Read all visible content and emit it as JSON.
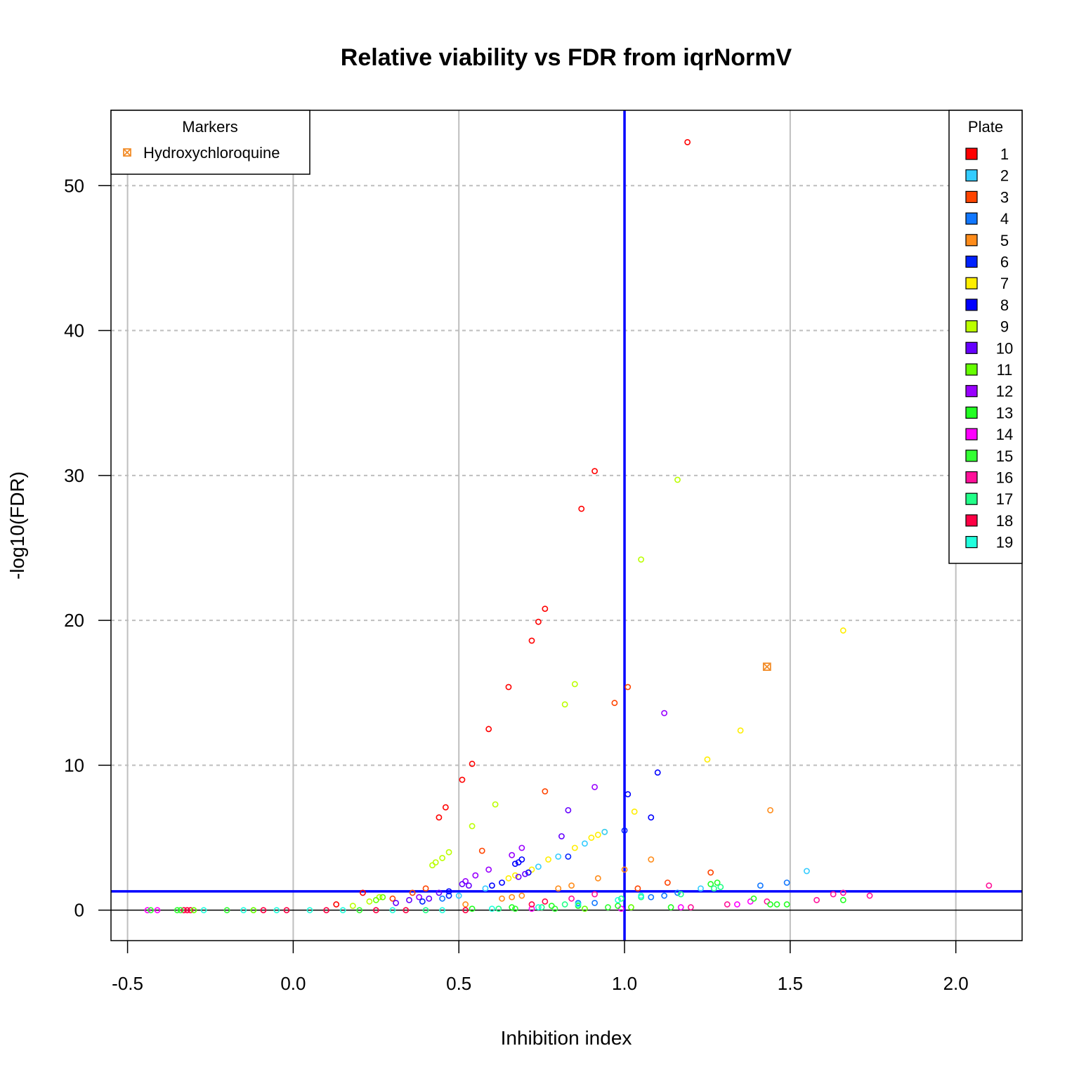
{
  "chart_data": {
    "type": "scatter",
    "title": "Relative viability vs FDR from iqrNormV",
    "xlabel": "Inhibition index",
    "ylabel": "-log10(FDR)",
    "xlim": [
      -0.55,
      2.2
    ],
    "ylim": [
      -2.1,
      55.2
    ],
    "x_ticks": [
      -0.5,
      0.0,
      0.5,
      1.0,
      1.5,
      2.0
    ],
    "x_tick_labels": [
      "-0.5",
      "0.0",
      "0.5",
      "1.0",
      "1.5",
      "2.0"
    ],
    "y_ticks": [
      0,
      10,
      20,
      30,
      40,
      50
    ],
    "y_tick_labels": [
      "0",
      "10",
      "20",
      "30",
      "40",
      "50"
    ],
    "grid": true,
    "threshold_lines": {
      "x": 1.0,
      "y": 1.3,
      "color": "#0000FF"
    },
    "zero_line_y": 0,
    "legend_markers": {
      "title": "Markers",
      "position": "top-left",
      "items": [
        {
          "label": "Hydroxychloroquine",
          "color": "#F28C28"
        }
      ]
    },
    "legend_plates": {
      "title": "Plate",
      "position": "top-right",
      "items": [
        {
          "label": "1",
          "color": "#FF0000"
        },
        {
          "label": "2",
          "color": "#33CCFF"
        },
        {
          "label": "3",
          "color": "#FF4400"
        },
        {
          "label": "4",
          "color": "#1177FF"
        },
        {
          "label": "5",
          "color": "#FF8C1A"
        },
        {
          "label": "6",
          "color": "#0022FF"
        },
        {
          "label": "7",
          "color": "#FFEE00"
        },
        {
          "label": "8",
          "color": "#0000FF"
        },
        {
          "label": "9",
          "color": "#BBFF00"
        },
        {
          "label": "10",
          "color": "#6600FF"
        },
        {
          "label": "11",
          "color": "#66FF00"
        },
        {
          "label": "12",
          "color": "#9900FF"
        },
        {
          "label": "13",
          "color": "#22FF22"
        },
        {
          "label": "14",
          "color": "#FF00FF"
        },
        {
          "label": "15",
          "color": "#33FF33"
        },
        {
          "label": "16",
          "color": "#FF1199"
        },
        {
          "label": "17",
          "color": "#22FF88"
        },
        {
          "label": "18",
          "color": "#FF0044"
        },
        {
          "label": "19",
          "color": "#22FFDD"
        }
      ]
    },
    "series": [
      {
        "name": "1",
        "color": "#FF0000",
        "points": [
          [
            1.19,
            53.0
          ],
          [
            0.91,
            30.3
          ],
          [
            0.87,
            27.7
          ],
          [
            0.76,
            20.8
          ],
          [
            0.74,
            19.9
          ],
          [
            0.72,
            18.6
          ],
          [
            0.65,
            15.4
          ],
          [
            0.59,
            12.5
          ],
          [
            0.54,
            10.1
          ],
          [
            0.51,
            9.0
          ],
          [
            0.46,
            7.1
          ],
          [
            0.44,
            6.4
          ],
          [
            0.21,
            1.2
          ],
          [
            0.13,
            0.4
          ]
        ]
      },
      {
        "name": "3",
        "color": "#FF4400",
        "points": [
          [
            1.01,
            15.4
          ],
          [
            0.97,
            14.3
          ],
          [
            0.76,
            8.2
          ],
          [
            0.57,
            4.1
          ],
          [
            1.26,
            2.6
          ],
          [
            1.13,
            1.9
          ],
          [
            1.04,
            1.5
          ],
          [
            0.4,
            1.5
          ],
          [
            0.36,
            1.2
          ],
          [
            0.3,
            0.8
          ]
        ]
      },
      {
        "name": "9",
        "color": "#BBFF00",
        "points": [
          [
            1.16,
            29.7
          ],
          [
            1.05,
            24.2
          ],
          [
            0.85,
            15.6
          ],
          [
            0.82,
            14.2
          ],
          [
            0.61,
            7.3
          ],
          [
            0.54,
            5.8
          ],
          [
            0.47,
            4.0
          ],
          [
            0.45,
            3.6
          ],
          [
            0.43,
            3.3
          ],
          [
            0.42,
            3.1
          ],
          [
            0.26,
            0.9
          ],
          [
            0.23,
            0.6
          ],
          [
            0.18,
            0.3
          ]
        ]
      },
      {
        "name": "7",
        "color": "#FFEE00",
        "points": [
          [
            1.66,
            19.3
          ],
          [
            1.35,
            12.4
          ],
          [
            1.25,
            10.4
          ],
          [
            1.03,
            6.8
          ],
          [
            0.94,
            5.4
          ],
          [
            0.92,
            5.2
          ],
          [
            0.9,
            5.0
          ],
          [
            0.85,
            4.3
          ],
          [
            0.77,
            3.5
          ],
          [
            0.72,
            2.8
          ],
          [
            0.67,
            2.4
          ],
          [
            0.65,
            2.2
          ]
        ]
      },
      {
        "name": "5",
        "color": "#FF8C1A",
        "points": [
          [
            1.44,
            6.9
          ],
          [
            1.08,
            3.5
          ],
          [
            1.0,
            2.8
          ],
          [
            0.92,
            2.2
          ],
          [
            0.84,
            1.7
          ],
          [
            0.8,
            1.5
          ],
          [
            0.69,
            1.0
          ],
          [
            0.66,
            0.9
          ],
          [
            0.63,
            0.8
          ],
          [
            0.52,
            0.4
          ]
        ]
      },
      {
        "name": "12",
        "color": "#9900FF",
        "points": [
          [
            1.12,
            13.6
          ],
          [
            0.91,
            8.5
          ],
          [
            0.69,
            4.3
          ],
          [
            0.66,
            3.8
          ],
          [
            0.59,
            2.8
          ],
          [
            0.55,
            2.4
          ],
          [
            0.52,
            2.0
          ],
          [
            0.38,
            0.9
          ]
        ]
      },
      {
        "name": "8",
        "color": "#0000FF",
        "points": [
          [
            1.1,
            9.5
          ],
          [
            1.01,
            8.0
          ],
          [
            1.08,
            6.4
          ],
          [
            0.69,
            3.5
          ],
          [
            0.68,
            3.3
          ],
          [
            0.67,
            3.2
          ],
          [
            0.71,
            2.6
          ],
          [
            0.63,
            1.9
          ],
          [
            0.6,
            1.7
          ],
          [
            0.47,
            1.3
          ]
        ]
      },
      {
        "name": "10",
        "color": "#6600FF",
        "points": [
          [
            0.83,
            6.9
          ],
          [
            0.81,
            5.1
          ],
          [
            0.7,
            2.5
          ],
          [
            0.68,
            2.3
          ],
          [
            0.53,
            1.7
          ],
          [
            0.51,
            1.8
          ],
          [
            0.44,
            1.2
          ],
          [
            0.41,
            0.8
          ],
          [
            0.35,
            0.7
          ],
          [
            0.31,
            0.5
          ]
        ]
      },
      {
        "name": "2",
        "color": "#33CCFF",
        "points": [
          [
            0.94,
            5.4
          ],
          [
            0.88,
            4.6
          ],
          [
            0.8,
            3.7
          ],
          [
            0.74,
            3.0
          ],
          [
            1.55,
            2.7
          ],
          [
            1.23,
            1.5
          ],
          [
            0.58,
            1.5
          ],
          [
            0.5,
            1.0
          ]
        ]
      },
      {
        "name": "6",
        "color": "#0022FF",
        "points": [
          [
            1.0,
            5.5
          ],
          [
            0.83,
            3.7
          ],
          [
            0.47,
            1.0
          ],
          [
            0.39,
            0.6
          ]
        ]
      },
      {
        "name": "4",
        "color": "#1177FF",
        "points": [
          [
            1.49,
            1.9
          ],
          [
            1.41,
            1.7
          ],
          [
            1.16,
            1.2
          ],
          [
            1.12,
            1.0
          ],
          [
            1.08,
            0.9
          ],
          [
            0.91,
            0.5
          ],
          [
            0.86,
            0.5
          ],
          [
            0.45,
            0.8
          ]
        ]
      },
      {
        "name": "16",
        "color": "#FF1199",
        "points": [
          [
            2.1,
            1.7
          ],
          [
            1.74,
            1.0
          ],
          [
            1.66,
            1.2
          ],
          [
            1.63,
            1.1
          ],
          [
            1.58,
            0.7
          ],
          [
            1.43,
            0.6
          ],
          [
            1.31,
            0.4
          ],
          [
            1.2,
            0.2
          ],
          [
            0.91,
            1.1
          ],
          [
            0.84,
            0.8
          ]
        ]
      },
      {
        "name": "14",
        "color": "#FF00FF",
        "points": [
          [
            1.38,
            0.6
          ],
          [
            1.34,
            0.4
          ],
          [
            1.17,
            0.2
          ],
          [
            0.99,
            0.1
          ],
          [
            0.72,
            0.1
          ],
          [
            -0.44,
            0.0
          ],
          [
            -0.41,
            0.0
          ]
        ]
      },
      {
        "name": "13",
        "color": "#22FF22",
        "points": [
          [
            1.28,
            1.9
          ],
          [
            1.26,
            1.8
          ],
          [
            1.46,
            0.4
          ],
          [
            1.49,
            0.4
          ],
          [
            1.44,
            0.4
          ],
          [
            1.66,
            0.7
          ],
          [
            1.39,
            0.8
          ],
          [
            1.14,
            0.2
          ],
          [
            0.98,
            0.3
          ],
          [
            0.86,
            0.3
          ],
          [
            0.78,
            0.3
          ],
          [
            0.66,
            0.2
          ],
          [
            0.54,
            0.1
          ]
        ]
      },
      {
        "name": "17",
        "color": "#22FF88",
        "points": [
          [
            1.29,
            1.6
          ],
          [
            1.27,
            1.5
          ],
          [
            1.17,
            1.1
          ],
          [
            1.05,
            0.9
          ],
          [
            0.99,
            0.8
          ],
          [
            0.82,
            0.4
          ],
          [
            0.75,
            0.2
          ],
          [
            0.62,
            0.1
          ],
          [
            0.4,
            0.0
          ]
        ]
      },
      {
        "name": "19",
        "color": "#22FFDD",
        "points": [
          [
            1.05,
            1.0
          ],
          [
            0.98,
            0.7
          ],
          [
            0.86,
            0.4
          ],
          [
            0.74,
            0.2
          ],
          [
            0.6,
            0.1
          ],
          [
            0.45,
            0.0
          ],
          [
            0.3,
            0.0
          ],
          [
            0.15,
            0.0
          ],
          [
            0.05,
            0.0
          ],
          [
            -0.05,
            0.0
          ],
          [
            -0.15,
            0.0
          ],
          [
            -0.27,
            0.0
          ]
        ]
      },
      {
        "name": "18",
        "color": "#FF0044",
        "points": [
          [
            0.76,
            0.6
          ],
          [
            0.72,
            0.4
          ],
          [
            0.52,
            0.0
          ],
          [
            0.34,
            0.0
          ],
          [
            0.25,
            0.0
          ],
          [
            0.1,
            0.0
          ],
          [
            -0.02,
            0.0
          ],
          [
            -0.09,
            0.0
          ],
          [
            -0.32,
            0.0
          ],
          [
            -0.33,
            0.0
          ],
          [
            -0.31,
            0.0
          ]
        ]
      },
      {
        "name": "15",
        "color": "#33FF33",
        "points": [
          [
            0.95,
            0.2
          ],
          [
            0.79,
            0.1
          ],
          [
            0.67,
            0.1
          ],
          [
            0.2,
            0.0
          ],
          [
            -0.2,
            0.0
          ],
          [
            -0.35,
            0.0
          ],
          [
            -0.34,
            0.0
          ],
          [
            -0.43,
            0.0
          ]
        ]
      },
      {
        "name": "11",
        "color": "#66FF00",
        "points": [
          [
            1.02,
            0.2
          ],
          [
            0.88,
            0.1
          ],
          [
            0.27,
            0.9
          ],
          [
            0.25,
            0.7
          ],
          [
            -0.12,
            0.0
          ],
          [
            -0.3,
            0.0
          ]
        ]
      }
    ],
    "highlight_points": [
      {
        "name": "Hydroxychloroquine",
        "x": 1.43,
        "y": 16.8,
        "color": "#F28C28"
      }
    ]
  }
}
